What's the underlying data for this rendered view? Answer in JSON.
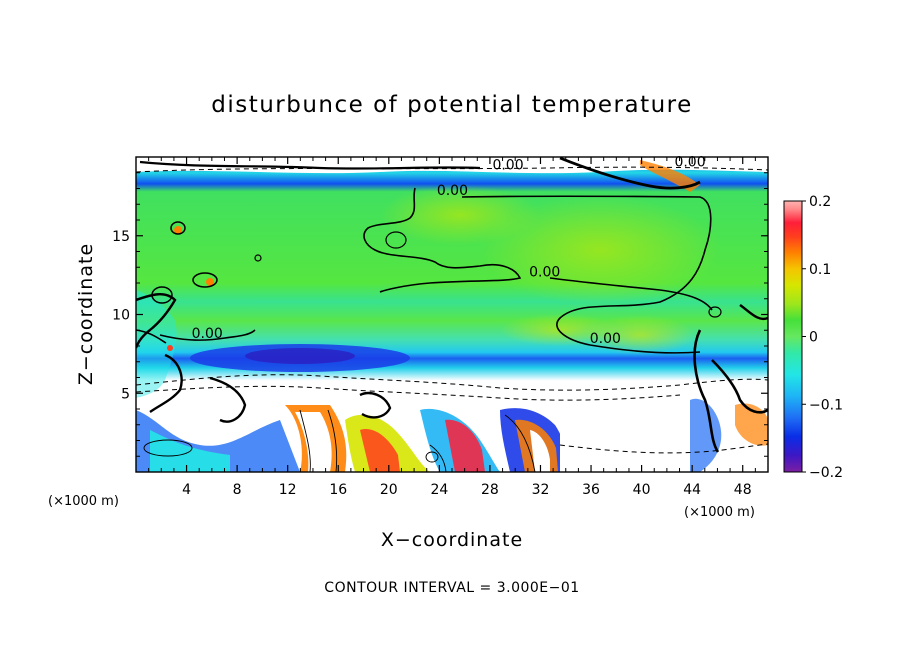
{
  "chart_data": {
    "type": "heatmap",
    "title": "disturbunce of potential temperature",
    "xlabel": "X−coordinate",
    "ylabel": "Z−coordinate",
    "x_unit": "(×1000 m)",
    "y_unit": "(×1000 m)",
    "xlim": [
      0,
      50
    ],
    "ylim": [
      0,
      20
    ],
    "x_ticks": [
      4,
      8,
      12,
      16,
      20,
      24,
      28,
      32,
      36,
      40,
      44,
      48
    ],
    "x_tick_labels": [
      "4",
      "8",
      "12",
      "16",
      "20",
      "24",
      "28",
      "32",
      "36",
      "40",
      "44",
      "48"
    ],
    "y_ticks": [
      5,
      10,
      15
    ],
    "y_tick_labels": [
      "5",
      "10",
      "15"
    ],
    "colorbar": {
      "min": -0.2,
      "max": 0.2,
      "tick_values": [
        0.2,
        0.1,
        0,
        -0.1,
        -0.2
      ],
      "tick_labels": [
        "0.2",
        "0.1",
        "0",
        "−0.1",
        "−0.2"
      ],
      "colors": [
        "#7b1fa2",
        "#3f17c4",
        "#0a2de6",
        "#1f6ef5",
        "#1eb4f5",
        "#22e6e6",
        "#33e8a6",
        "#66e85f",
        "#45e03a",
        "#9ee61c",
        "#d6e600",
        "#f5c400",
        "#ff8000",
        "#ff3d1f",
        "#ff1f3a",
        "#ff8a8a",
        "#ffb3b3"
      ]
    },
    "contour_labels": [
      {
        "text": "0.00",
        "x": 23.8,
        "z": 17.6
      },
      {
        "text": "0.00",
        "x": 31.1,
        "z": 12.4
      },
      {
        "text": "0.00",
        "x": 35.9,
        "z": 8.2
      },
      {
        "text": "0.00",
        "x": 4.4,
        "z": 8.5
      },
      {
        "text": "0.00",
        "x": 42.6,
        "z": 19.4
      },
      {
        "text": "0.00",
        "x": 28.2,
        "z": 19.2
      }
    ],
    "contour_interval_text": "CONTOUR INTERVAL = 3.000E−01",
    "grid": false,
    "legend": "right colorbar"
  }
}
